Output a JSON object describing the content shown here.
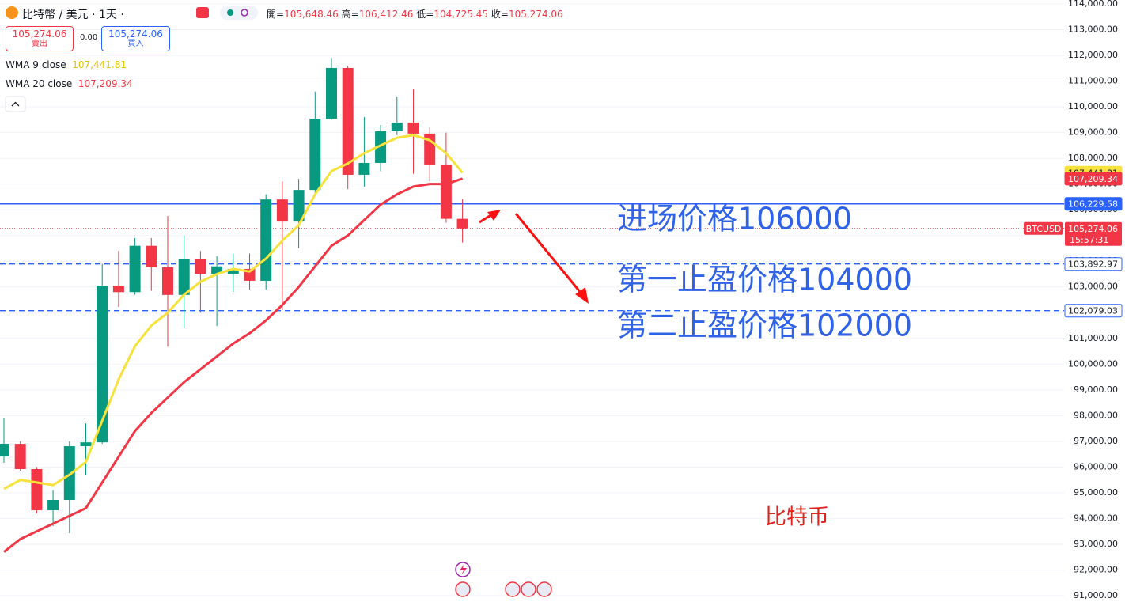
{
  "header": {
    "symbol": "比特幣 / 美元 · 1天 ·",
    "ohlc": [
      {
        "label": "開",
        "value": "105,648.46"
      },
      {
        "label": "高",
        "value": "106,412.46"
      },
      {
        "label": "低",
        "value": "104,725.45"
      },
      {
        "label": "收",
        "value": "105,274.06"
      }
    ],
    "sell": {
      "price": "105,274.06",
      "label": "賣出"
    },
    "spread": "0.00",
    "buy": {
      "price": "105,274.06",
      "label": "買入"
    }
  },
  "chart_data": {
    "type": "candlestick",
    "up_color": "#089981",
    "down_color": "#f23645",
    "open": [
      96410,
      96900,
      95920,
      94320,
      94720,
      96810,
      96960,
      103050,
      102800,
      104600,
      103760,
      102690,
      104070,
      103510,
      103510,
      103700,
      103240,
      106400,
      105540,
      106770,
      109540,
      111510,
      107360,
      107820,
      109050,
      109390,
      108960,
      107760,
      105648.46
    ],
    "high": [
      97918,
      97000,
      96000,
      95100,
      97000,
      97700,
      103900,
      104400,
      104900,
      104900,
      105760,
      105000,
      104400,
      104200,
      104300,
      104300,
      106600,
      107100,
      107200,
      110600,
      111900,
      111600,
      109600,
      109300,
      110400,
      110700,
      109200,
      109000,
      106412.46
    ],
    "low": [
      96165,
      95850,
      94200,
      93700,
      93428,
      95700,
      96900,
      102220,
      102700,
      102850,
      100680,
      101400,
      102000,
      101480,
      102800,
      102900,
      102900,
      102100,
      104500,
      106650,
      109500,
      106800,
      106900,
      107500,
      108900,
      107400,
      107100,
      105500,
      104725.45
    ],
    "close": [
      96903,
      95920,
      94320,
      94720,
      96810,
      96960,
      103050,
      102800,
      104600,
      103760,
      102690,
      104070,
      103510,
      103800,
      103700,
      103240,
      106400,
      105540,
      106770,
      109540,
      111510,
      107360,
      107820,
      109050,
      109390,
      108960,
      107760,
      105648,
      105274.06
    ],
    "series": [
      {
        "name": "WMA 9 close",
        "color": "#f7e23b",
        "legend_color": "#e2c400",
        "last_label": "107,441.81",
        "values": [
          95150,
          95500,
          95400,
          95300,
          95700,
          96200,
          97800,
          99400,
          100700,
          101500,
          102000,
          102700,
          103200,
          103500,
          103700,
          103600,
          104100,
          104800,
          105400,
          106600,
          107500,
          107800,
          108200,
          108500,
          108800,
          108900,
          108700,
          108200,
          107441.81
        ]
      },
      {
        "name": "WMA 20 close",
        "color": "#f23645",
        "legend_color": "#f23645",
        "last_label": "107,209.34",
        "values": [
          92700,
          93200,
          93500,
          93800,
          94100,
          94400,
          95400,
          96400,
          97400,
          98100,
          98700,
          99300,
          99800,
          100300,
          100800,
          101200,
          101700,
          102300,
          103000,
          103800,
          104600,
          105000,
          105600,
          106200,
          106600,
          106900,
          107000,
          107000,
          107209.34
        ]
      }
    ],
    "ylim": [
      91000,
      114000
    ],
    "yticks": [
      {
        "value": 91000,
        "label": "91,000.00"
      },
      {
        "value": 92000,
        "label": "92,000.00"
      },
      {
        "value": 93000,
        "label": "93,000.00"
      },
      {
        "value": 94000,
        "label": "94,000.00"
      },
      {
        "value": 95000,
        "label": "95,000.00"
      },
      {
        "value": 96000,
        "label": "96,000.00"
      },
      {
        "value": 97000,
        "label": "97,000.00"
      },
      {
        "value": 98000,
        "label": "98,000.00"
      },
      {
        "value": 99000,
        "label": "99,000.00"
      },
      {
        "value": 100000,
        "label": "100,000.00"
      },
      {
        "value": 101000,
        "label": "101,000.00"
      },
      {
        "value": 102000,
        "label": "102,000.00"
      },
      {
        "value": 103000,
        "label": "103,000.00"
      },
      {
        "value": 104000,
        "label": "104,000.00"
      },
      {
        "value": 105000,
        "label": "105,000.00"
      },
      {
        "value": 106000,
        "label": "106,000.00"
      },
      {
        "value": 107000,
        "label": "107,000.00"
      },
      {
        "value": 108000,
        "label": "108,000.00"
      },
      {
        "value": 109000,
        "label": "109,000.00"
      },
      {
        "value": 110000,
        "label": "110,000.00"
      },
      {
        "value": 111000,
        "label": "111,000.00"
      },
      {
        "value": 112000,
        "label": "112,000.00"
      },
      {
        "value": 113000,
        "label": "113,000.00"
      },
      {
        "value": 114000,
        "label": "114,000.00"
      }
    ],
    "grid": true,
    "levels": [
      {
        "value": 106229.58,
        "label": "106,229.58",
        "style": "solid"
      },
      {
        "value": 103892.97,
        "label": "103,892.97",
        "style": "dashed"
      },
      {
        "value": 102079.03,
        "label": "102,079.03",
        "style": "dashed"
      }
    ],
    "level_color": "#2962ff",
    "last_price": {
      "value": 105274.06,
      "label": "105,274.06",
      "symbol": "BTCUSD",
      "countdown": "15:57:31"
    },
    "annotations": [
      {
        "text": "进场价格106000",
        "color": "#2f62e6"
      },
      {
        "text": "第一止盈价格104000",
        "color": "#2f62e6"
      },
      {
        "text": "第二止盈价格102000",
        "color": "#2f62e6"
      },
      {
        "text": "比特币",
        "color": "#e0241b"
      }
    ]
  }
}
